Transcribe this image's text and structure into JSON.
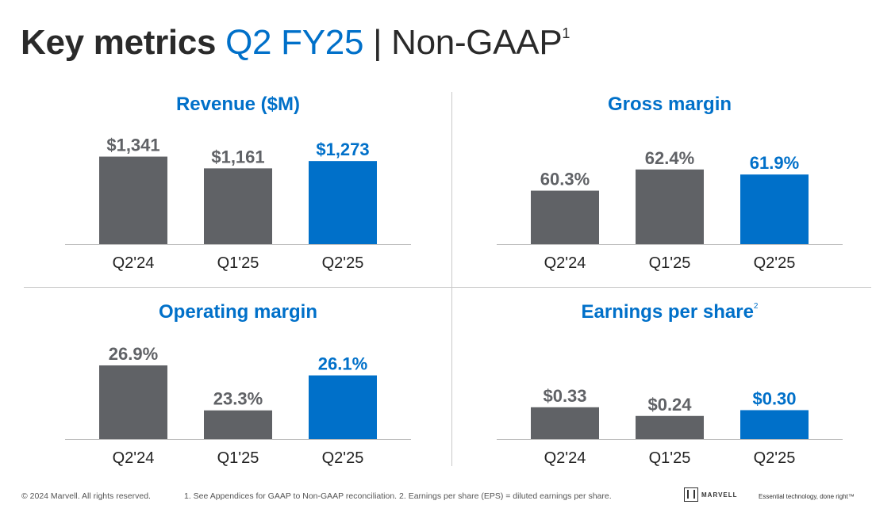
{
  "title": {
    "main": "Key metrics",
    "period": "Q2 FY25",
    "separator": "|",
    "basis": "Non-GAAP",
    "footnote": "1"
  },
  "colors": {
    "accent": "#0070c9",
    "prior_bar": "#606266",
    "current_bar": "#0070c9",
    "label_gray": "#606266",
    "axis": "#bfbfbf"
  },
  "chart_data": [
    {
      "type": "bar",
      "title": "Revenue ($M)",
      "categories": [
        "Q2'24",
        "Q1'25",
        "Q2'25"
      ],
      "values": [
        1341,
        1161,
        1273
      ],
      "value_labels": [
        "$1,341",
        "$1,161",
        "$1,273"
      ],
      "highlight_index": 2,
      "ylim": [
        0,
        1700
      ]
    },
    {
      "type": "bar",
      "title": "Gross margin",
      "categories": [
        "Q2'24",
        "Q1'25",
        "Q2'25"
      ],
      "values": [
        60.3,
        62.4,
        61.9
      ],
      "value_labels": [
        "60.3%",
        "62.4%",
        "61.9%"
      ],
      "highlight_index": 2,
      "ylim": [
        55,
        66
      ]
    },
    {
      "type": "bar",
      "title": "Operating margin",
      "categories": [
        "Q2'24",
        "Q1'25",
        "Q2'25"
      ],
      "values": [
        26.9,
        23.3,
        26.1
      ],
      "value_labels": [
        "26.9%",
        "23.3%",
        "26.1%"
      ],
      "highlight_index": 2,
      "ylim": [
        21,
        29.5
      ]
    },
    {
      "type": "bar",
      "title": "Earnings per share",
      "title_footnote": "2",
      "categories": [
        "Q2'24",
        "Q1'25",
        "Q2'25"
      ],
      "values": [
        0.33,
        0.24,
        0.3
      ],
      "value_labels": [
        "$0.33",
        "$0.24",
        "$0.30"
      ],
      "highlight_index": 2,
      "ylim": [
        0,
        1.1
      ]
    }
  ],
  "footer": {
    "copyright": "© 2024 Marvell. All rights reserved.",
    "notes": "1. See Appendices for GAAP to Non-GAAP reconciliation. 2. Earnings per share (EPS) = diluted earnings per share.",
    "logo_text": "MARVELL",
    "tagline": "Essential technology, done right™",
    "logo_icon": "marvell-logo-icon"
  }
}
